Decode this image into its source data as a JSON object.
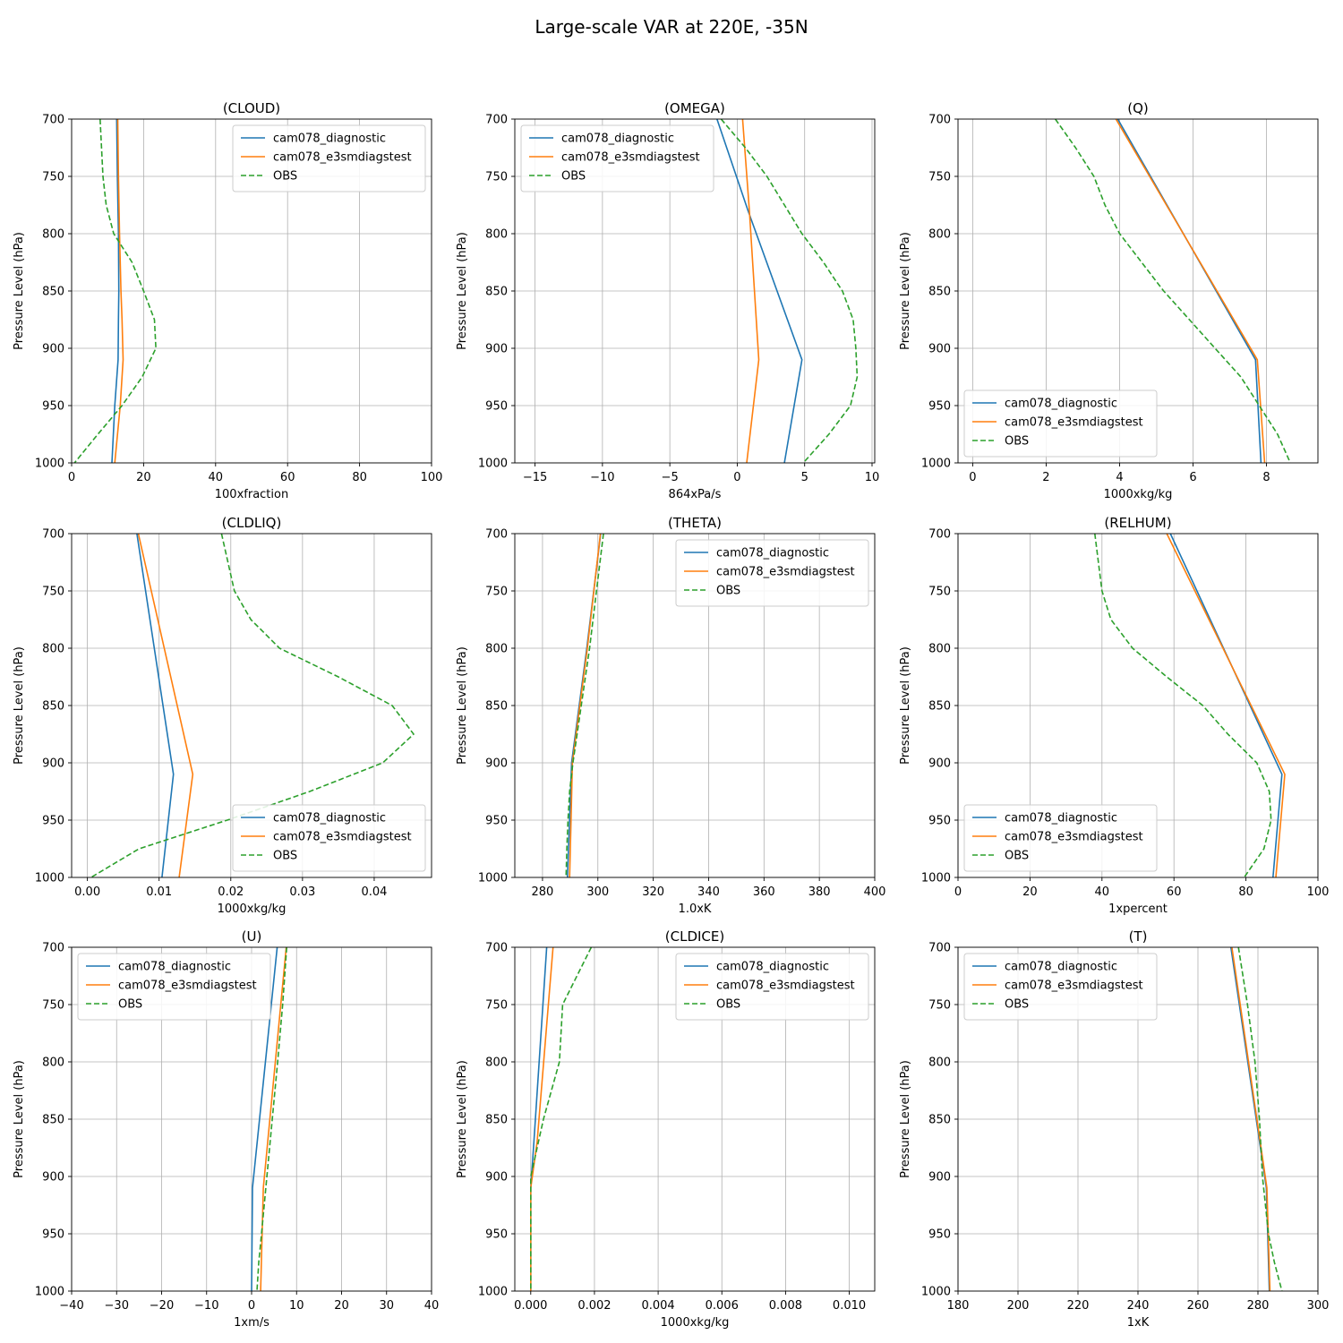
{
  "figure": {
    "title": "Large-scale VAR at 220E, -35N"
  },
  "colors": {
    "cam078_diagnostic": "#1f77b4",
    "cam078_e3smdiagstest": "#ff7f0e",
    "OBS": "#2ca02c"
  },
  "chart_data": [
    {
      "type": "line",
      "title": "(CLOUD)",
      "xlabel": "100xfraction",
      "ylabel": "Pressure Level (hPa)",
      "xlim": [
        0,
        100
      ],
      "ylim": [
        1000,
        700
      ],
      "xticks": [
        0,
        20,
        40,
        60,
        80,
        100
      ],
      "xticklabels": [
        "0",
        "20",
        "40",
        "60",
        "80",
        "100"
      ],
      "yticks": [
        700,
        750,
        800,
        850,
        900,
        950,
        1000
      ],
      "grid": true,
      "legend": "top-right",
      "series": [
        {
          "name": "cam078_diagnostic",
          "x": [
            12.5,
            12.7,
            13.0,
            13.1,
            13.0,
            12.9,
            12.0,
            11.2
          ],
          "y": [
            700,
            750,
            800,
            850,
            875,
            910,
            950,
            1000
          ]
        },
        {
          "name": "cam078_e3smdiagstest",
          "x": [
            12.8,
            13.0,
            13.3,
            13.7,
            14.0,
            14.3,
            13.5,
            12.0
          ],
          "y": [
            700,
            750,
            800,
            850,
            875,
            910,
            950,
            1000
          ]
        },
        {
          "name": "OBS",
          "x": [
            7.9,
            8.7,
            9.6,
            11.7,
            16.8,
            20.0,
            23.0,
            23.4,
            19.6,
            14.0,
            7.3,
            0.8
          ],
          "y": [
            700,
            750,
            775,
            800,
            825,
            850,
            875,
            900,
            925,
            950,
            975,
            1000
          ]
        }
      ]
    },
    {
      "type": "line",
      "title": "(OMEGA)",
      "xlabel": "864xPa/s",
      "ylabel": "Pressure Level (hPa)",
      "xlim": [
        -16.5,
        10.2
      ],
      "ylim": [
        1000,
        700
      ],
      "xticks": [
        -15,
        -10,
        -5,
        0,
        5,
        10
      ],
      "xticklabels": [
        "−15",
        "−10",
        "−5",
        "0",
        "5",
        "10"
      ],
      "yticks": [
        700,
        750,
        800,
        850,
        900,
        950,
        1000
      ],
      "grid": true,
      "legend": "top-left",
      "series": [
        {
          "name": "cam078_diagnostic",
          "x": [
            -1.5,
            0.8,
            4.8,
            3.5
          ],
          "y": [
            700,
            780,
            910,
            1000
          ]
        },
        {
          "name": "cam078_e3smdiagstest",
          "x": [
            0.4,
            0.9,
            1.6,
            0.7
          ],
          "y": [
            700,
            780,
            910,
            1000
          ]
        },
        {
          "name": "OBS",
          "x": [
            -1.2,
            0.6,
            2.2,
            4.8,
            6.4,
            7.8,
            8.6,
            8.8,
            8.9,
            8.4,
            6.8,
            4.9
          ],
          "y": [
            700,
            725,
            750,
            800,
            825,
            850,
            875,
            900,
            925,
            950,
            975,
            1000
          ]
        }
      ]
    },
    {
      "type": "line",
      "title": "(Q)",
      "xlabel": "1000xkg/kg",
      "ylabel": "Pressure Level (hPa)",
      "xlim": [
        -0.4,
        9.4
      ],
      "ylim": [
        1000,
        700
      ],
      "xticks": [
        0,
        2,
        4,
        6,
        8
      ],
      "xticklabels": [
        "0",
        "2",
        "4",
        "6",
        "8"
      ],
      "yticks": [
        700,
        750,
        800,
        850,
        900,
        950,
        1000
      ],
      "grid": true,
      "legend": "bottom-left",
      "series": [
        {
          "name": "cam078_diagnostic",
          "x": [
            3.95,
            7.7,
            7.85
          ],
          "y": [
            700,
            910,
            1000
          ]
        },
        {
          "name": "cam078_e3smdiagstest",
          "x": [
            3.9,
            7.75,
            7.95
          ],
          "y": [
            700,
            910,
            1000
          ]
        },
        {
          "name": "OBS",
          "x": [
            2.25,
            2.8,
            3.3,
            3.6,
            4.0,
            4.6,
            5.2,
            5.9,
            6.6,
            7.3,
            7.8,
            8.3,
            8.65
          ],
          "y": [
            700,
            725,
            750,
            775,
            800,
            825,
            850,
            875,
            900,
            925,
            950,
            975,
            1000
          ]
        }
      ]
    },
    {
      "type": "line",
      "title": "(CLDLIQ)",
      "xlabel": "1000xkg/kg",
      "ylabel": "Pressure Level (hPa)",
      "xlim": [
        -0.0022,
        0.048
      ],
      "ylim": [
        1000,
        700
      ],
      "xticks": [
        0,
        0.01,
        0.02,
        0.03,
        0.04
      ],
      "xticklabels": [
        "0.00",
        "0.01",
        "0.02",
        "0.03",
        "0.04"
      ],
      "yticks": [
        700,
        750,
        800,
        850,
        900,
        950,
        1000
      ],
      "grid": true,
      "legend": "bottom-right",
      "series": [
        {
          "name": "cam078_diagnostic",
          "x": [
            0.0069,
            0.012,
            0.0104
          ],
          "y": [
            700,
            910,
            1000
          ]
        },
        {
          "name": "cam078_e3smdiagstest",
          "x": [
            0.0071,
            0.0147,
            0.0128
          ],
          "y": [
            700,
            910,
            1000
          ]
        },
        {
          "name": "OBS",
          "x": [
            0.0187,
            0.0205,
            0.0228,
            0.0268,
            0.035,
            0.0425,
            0.0455,
            0.0412,
            0.031,
            0.0195,
            0.0072,
            0.0005
          ],
          "y": [
            700,
            750,
            775,
            800,
            825,
            850,
            875,
            900,
            925,
            950,
            975,
            1000
          ]
        }
      ]
    },
    {
      "type": "line",
      "title": "(THETA)",
      "xlabel": "1.0xK",
      "ylabel": "Pressure Level (hPa)",
      "xlim": [
        270,
        400
      ],
      "ylim": [
        1000,
        700
      ],
      "xticks": [
        280,
        300,
        320,
        340,
        360,
        380,
        400
      ],
      "xticklabels": [
        "280",
        "300",
        "320",
        "340",
        "360",
        "380",
        "400"
      ],
      "yticks": [
        700,
        750,
        800,
        850,
        900,
        950,
        1000
      ],
      "grid": true,
      "legend": "top-right",
      "series": [
        {
          "name": "cam078_diagnostic",
          "x": [
            301.0,
            296.0,
            290.5,
            289.8,
            289.0
          ],
          "y": [
            700,
            800,
            900,
            950,
            1000
          ]
        },
        {
          "name": "cam078_e3smdiagstest",
          "x": [
            300.9,
            296.2,
            290.8,
            290.3,
            289.8
          ],
          "y": [
            700,
            800,
            900,
            950,
            1000
          ]
        },
        {
          "name": "OBS",
          "x": [
            302.0,
            299.5,
            297.0,
            294.0,
            291.0,
            289.8,
            289.2,
            288.8,
            288.5
          ],
          "y": [
            700,
            750,
            800,
            850,
            900,
            925,
            950,
            975,
            1000
          ]
        }
      ]
    },
    {
      "type": "line",
      "title": "(RELHUM)",
      "xlabel": "1xpercent",
      "ylabel": "Pressure Level (hPa)",
      "xlim": [
        0,
        100
      ],
      "ylim": [
        1000,
        700
      ],
      "xticks": [
        0,
        20,
        40,
        60,
        80,
        100
      ],
      "xticklabels": [
        "0",
        "20",
        "40",
        "60",
        "80",
        "100"
      ],
      "yticks": [
        700,
        750,
        800,
        850,
        900,
        950,
        1000
      ],
      "grid": true,
      "legend": "bottom-left",
      "series": [
        {
          "name": "cam078_diagnostic",
          "x": [
            59.0,
            90.0,
            87.5
          ],
          "y": [
            700,
            910,
            1000
          ]
        },
        {
          "name": "cam078_e3smdiagstest",
          "x": [
            58.0,
            90.8,
            88.3
          ],
          "y": [
            700,
            910,
            1000
          ]
        },
        {
          "name": "OBS",
          "x": [
            38.0,
            40.0,
            42.5,
            48.5,
            58.0,
            68.0,
            75.0,
            83.0,
            86.5,
            87.0,
            85.0,
            79.5
          ],
          "y": [
            700,
            750,
            775,
            800,
            825,
            850,
            875,
            900,
            925,
            950,
            975,
            1000
          ]
        }
      ]
    },
    {
      "type": "line",
      "title": "(U)",
      "xlabel": "1xm/s",
      "ylabel": "Pressure Level (hPa)",
      "xlim": [
        -40,
        40
      ],
      "ylim": [
        1000,
        700
      ],
      "xticks": [
        -40,
        -30,
        -20,
        -10,
        0,
        10,
        20,
        30,
        40
      ],
      "xticklabels": [
        "−40",
        "−30",
        "−20",
        "−10",
        "0",
        "10",
        "20",
        "30",
        "40"
      ],
      "yticks": [
        700,
        750,
        800,
        850,
        900,
        950,
        1000
      ],
      "grid": true,
      "legend": "top-left",
      "series": [
        {
          "name": "cam078_diagnostic",
          "x": [
            5.7,
            0.2,
            0.0
          ],
          "y": [
            700,
            910,
            1000
          ]
        },
        {
          "name": "cam078_e3smdiagstest",
          "x": [
            7.7,
            2.6,
            2.0
          ],
          "y": [
            700,
            910,
            1000
          ]
        },
        {
          "name": "OBS",
          "x": [
            7.8,
            6.9,
            5.8,
            4.6,
            3.4,
            2.8,
            2.2,
            1.6,
            1.2
          ],
          "y": [
            700,
            750,
            800,
            850,
            900,
            925,
            950,
            975,
            1000
          ]
        }
      ]
    },
    {
      "type": "line",
      "title": "(CLDICE)",
      "xlabel": "1000xkg/kg",
      "ylabel": "Pressure Level (hPa)",
      "xlim": [
        -0.0005,
        0.0108
      ],
      "ylim": [
        1000,
        700
      ],
      "xticks": [
        0,
        0.002,
        0.004,
        0.006,
        0.008,
        0.01
      ],
      "xticklabels": [
        "0.000",
        "0.002",
        "0.004",
        "0.006",
        "0.008",
        "0.010"
      ],
      "yticks": [
        700,
        750,
        800,
        850,
        900,
        950,
        1000
      ],
      "grid": true,
      "legend": "top-right",
      "series": [
        {
          "name": "cam078_diagnostic",
          "x": [
            0.0005,
            0.0001,
            0.0,
            0.0
          ],
          "y": [
            700,
            870,
            910,
            1000
          ]
        },
        {
          "name": "cam078_e3smdiagstest",
          "x": [
            0.0007,
            0.0002,
            0.0,
            0.0
          ],
          "y": [
            700,
            870,
            910,
            1000
          ]
        },
        {
          "name": "OBS",
          "x": [
            0.0019,
            0.001,
            0.0009,
            0.0004,
            0.0,
            0.0,
            0.0
          ],
          "y": [
            700,
            750,
            800,
            850,
            900,
            950,
            1000
          ]
        }
      ]
    },
    {
      "type": "line",
      "title": "(T)",
      "xlabel": "1xK",
      "ylabel": "Pressure Level (hPa)",
      "xlim": [
        180,
        300
      ],
      "ylim": [
        1000,
        700
      ],
      "xticks": [
        180,
        200,
        220,
        240,
        260,
        280,
        300
      ],
      "xticklabels": [
        "180",
        "200",
        "220",
        "240",
        "260",
        "280",
        "300"
      ],
      "yticks": [
        700,
        750,
        800,
        850,
        900,
        950,
        1000
      ],
      "grid": true,
      "legend": "top-left",
      "series": [
        {
          "name": "cam078_diagnostic",
          "x": [
            271.0,
            282.8,
            283.8
          ],
          "y": [
            700,
            910,
            1000
          ]
        },
        {
          "name": "cam078_e3smdiagstest",
          "x": [
            271.3,
            283.0,
            284.0
          ],
          "y": [
            700,
            910,
            1000
          ]
        },
        {
          "name": "OBS",
          "x": [
            273.5,
            276.5,
            279.0,
            280.5,
            281.5,
            282.5,
            283.5,
            285.5,
            288.0
          ],
          "y": [
            700,
            750,
            800,
            850,
            900,
            925,
            950,
            975,
            1000
          ]
        }
      ]
    }
  ]
}
